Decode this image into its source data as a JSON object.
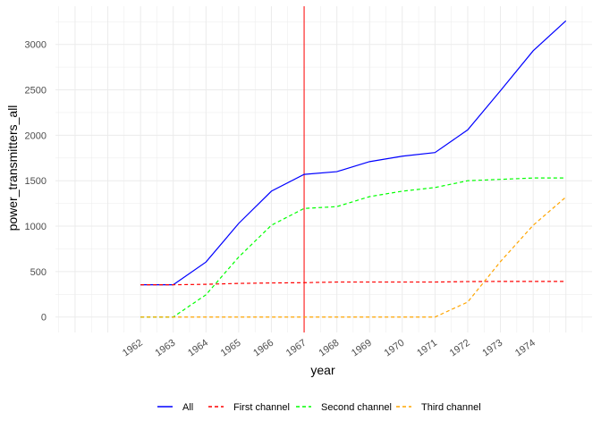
{
  "chart_data": {
    "type": "line",
    "xlabel": "year",
    "ylabel": "power_transmitters_all",
    "x_tick_labels": [
      "1962",
      "1963",
      "1964",
      "1965",
      "1966",
      "1967",
      "1968",
      "1969",
      "1970",
      "1971",
      "1972",
      "1973",
      "1974"
    ],
    "y_ticks": [
      0,
      500,
      1000,
      1500,
      2000,
      2500,
      3000
    ],
    "xlim": [
      1959.4,
      1975.8
    ],
    "ylim": [
      -170,
      3420
    ],
    "grid": true,
    "legend_position": "bottom",
    "vline": {
      "x": 1967,
      "color": "#ff0000"
    },
    "x": [
      1962,
      1963,
      1964,
      1965,
      1966,
      1967,
      1968,
      1969,
      1970,
      1971,
      1972,
      1973,
      1974,
      1975
    ],
    "series": [
      {
        "name": "All",
        "color": "#0000ff",
        "dash": "solid",
        "values": [
          355,
          355,
          605,
          1030,
          1385,
          1570,
          1600,
          1710,
          1770,
          1810,
          2060,
          2490,
          2930,
          3260
        ]
      },
      {
        "name": "First channel",
        "color": "#ff0000",
        "dash": "dashed",
        "values": [
          355,
          355,
          360,
          370,
          375,
          378,
          385,
          385,
          385,
          385,
          390,
          392,
          392,
          392
        ]
      },
      {
        "name": "Second channel",
        "color": "#00ff00",
        "dash": "dashed",
        "values": [
          0,
          0,
          245,
          660,
          1010,
          1195,
          1215,
          1325,
          1385,
          1425,
          1500,
          1515,
          1530,
          1530
        ]
      },
      {
        "name": "Third channel",
        "color": "#ffa500",
        "dash": "dashed",
        "values": [
          0,
          0,
          0,
          0,
          0,
          0,
          0,
          0,
          0,
          0,
          165,
          610,
          1010,
          1320
        ]
      }
    ]
  }
}
